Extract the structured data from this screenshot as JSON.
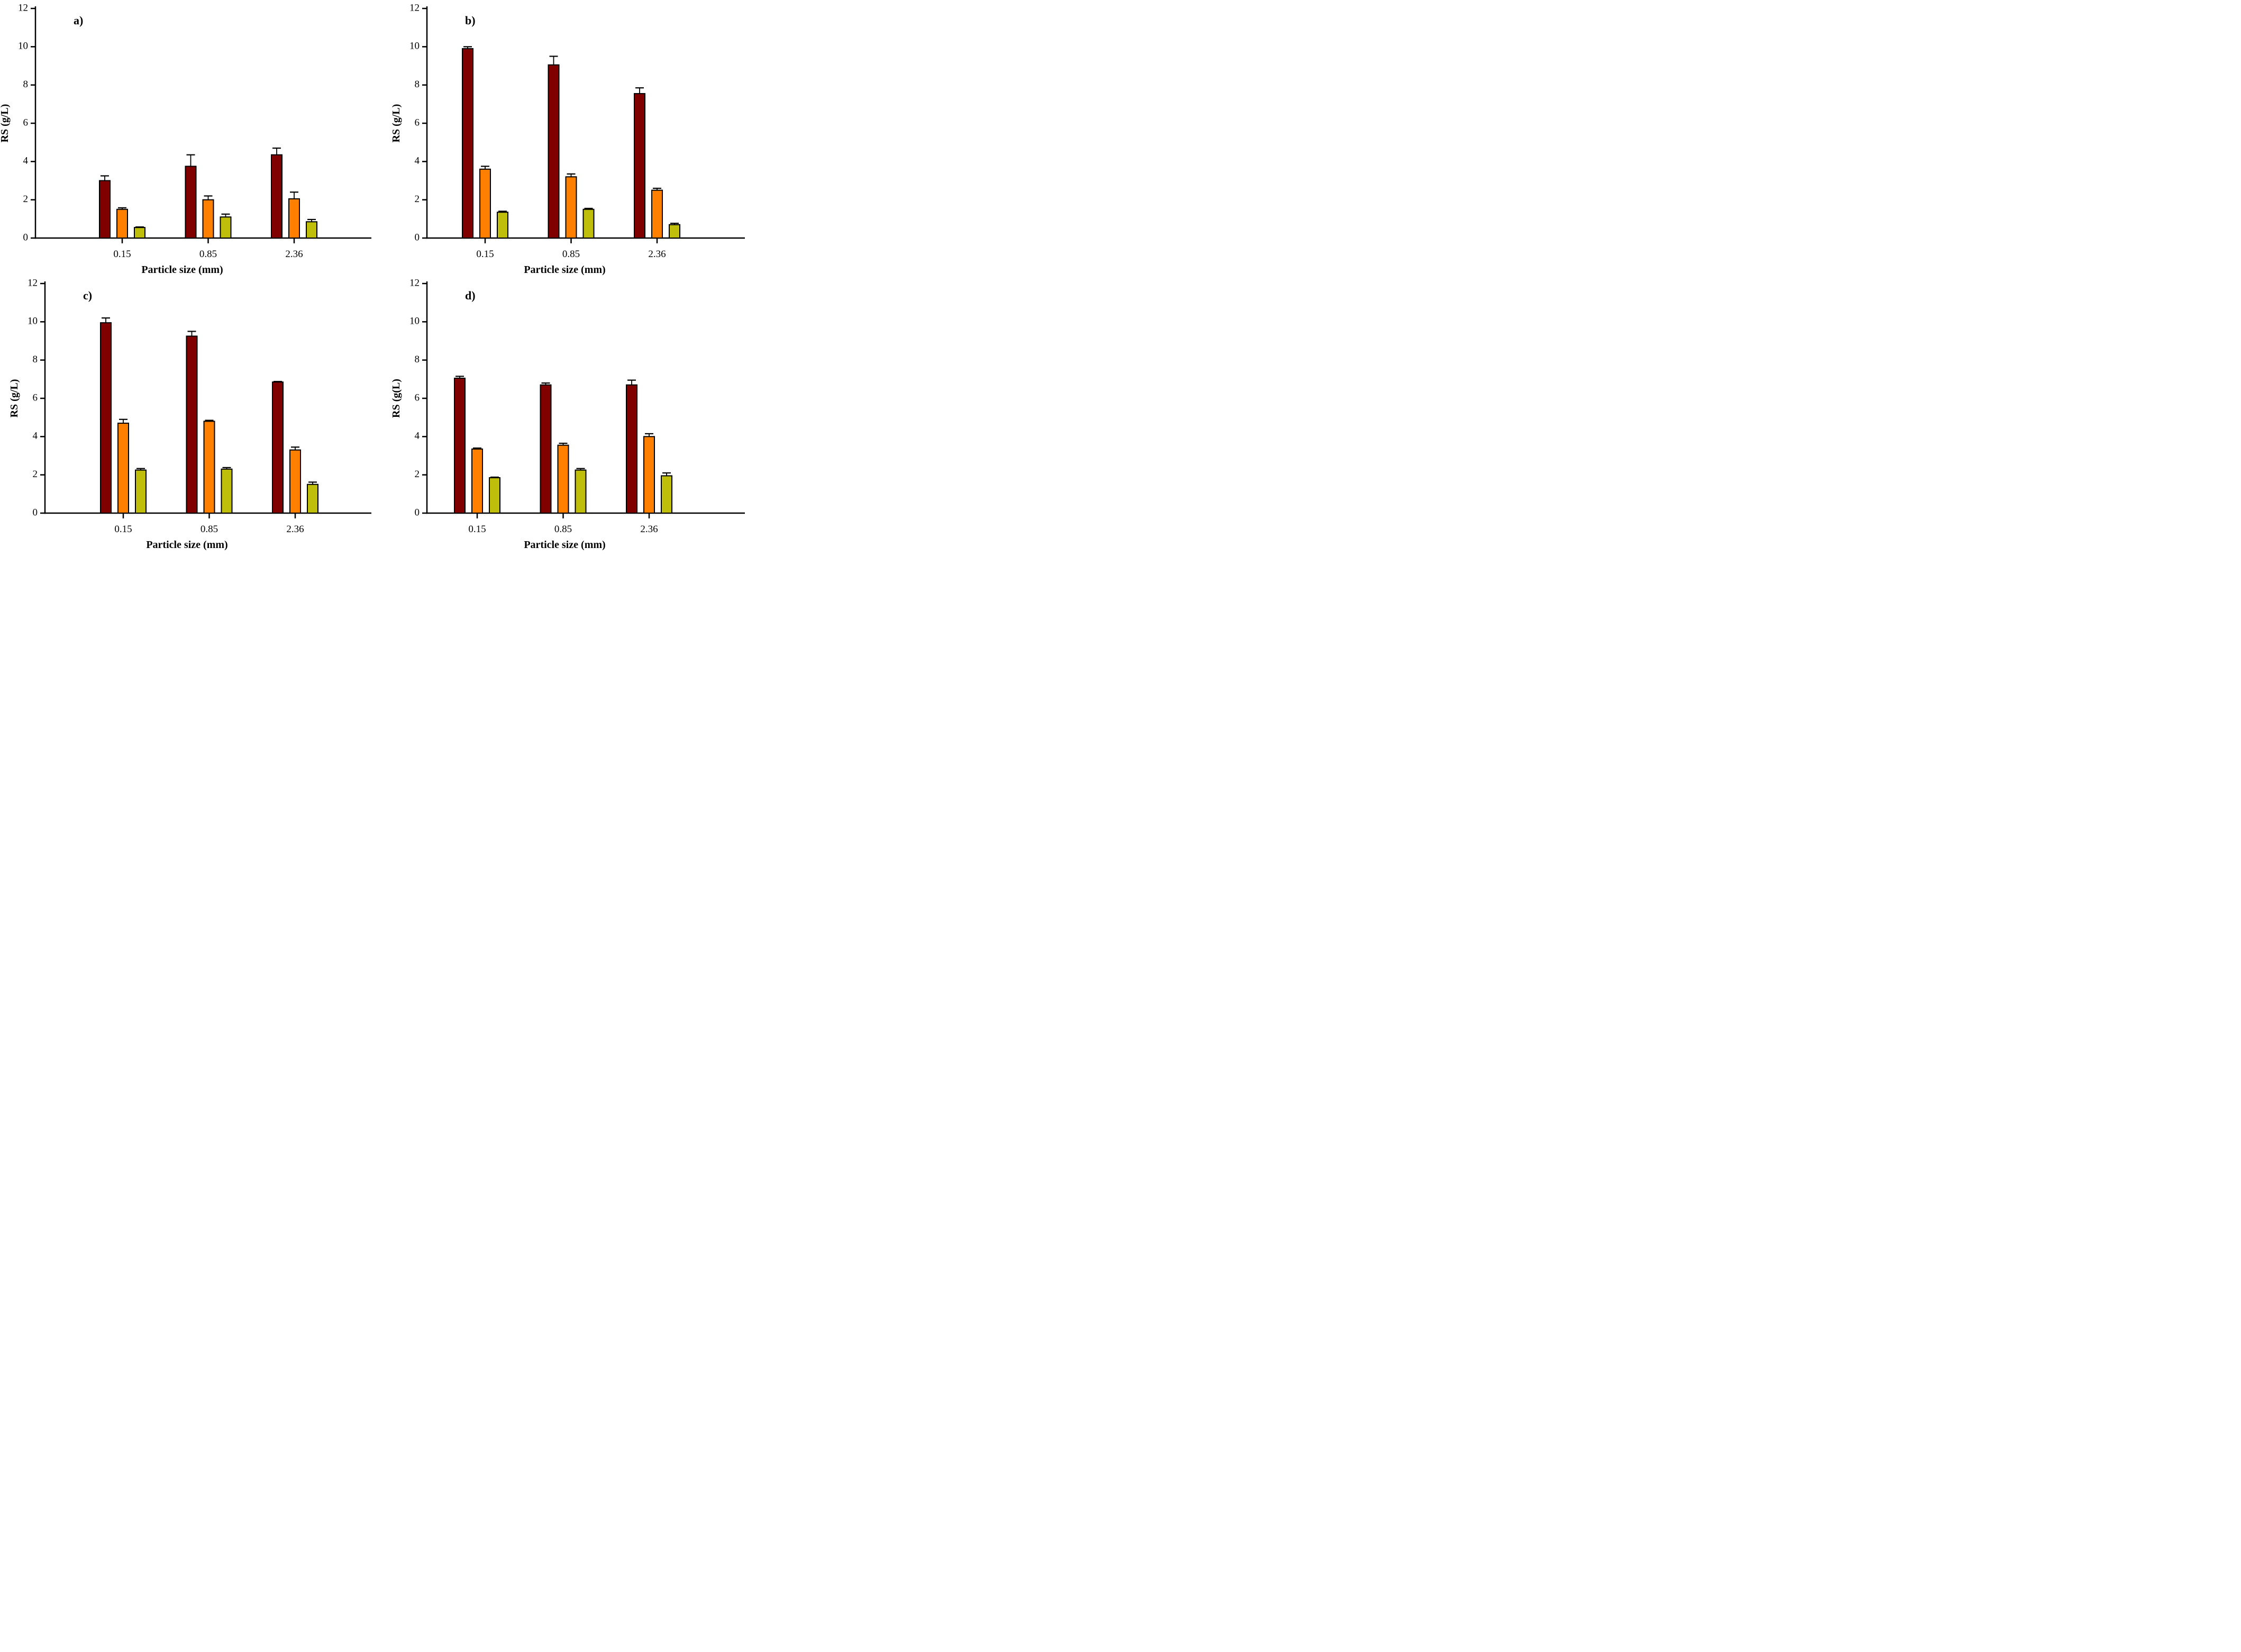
{
  "chart_data": [
    {
      "type": "bar",
      "panel_label": "a)",
      "xlabel": "Particle size (mm)",
      "ylabel": "RS (g/L)",
      "ylim": [
        0,
        12
      ],
      "yticks": [
        0,
        2,
        4,
        6,
        8,
        10,
        12
      ],
      "categories": [
        "0.15",
        "0.85",
        "2.36"
      ],
      "legend_shown": false,
      "error_bars": "upper",
      "series": [
        {
          "name": "dark-red-bars",
          "color": "#800000",
          "values": [
            3.0,
            3.75,
            4.35
          ],
          "errors": [
            0.25,
            0.6,
            0.35
          ]
        },
        {
          "name": "orange-bars",
          "color": "#FF8000",
          "values": [
            1.5,
            2.0,
            2.05
          ],
          "errors": [
            0.08,
            0.2,
            0.35
          ]
        },
        {
          "name": "olive-bars",
          "color": "#BFBE0B",
          "values": [
            0.55,
            1.1,
            0.85
          ],
          "errors": [
            0.03,
            0.15,
            0.12
          ]
        }
      ]
    },
    {
      "type": "bar",
      "panel_label": "b)",
      "xlabel": "Particle size (mm)",
      "ylabel": "RS (g/L)",
      "ylim": [
        0,
        12
      ],
      "yticks": [
        0,
        2,
        4,
        6,
        8,
        10,
        12
      ],
      "categories": [
        "0.15",
        "0.85",
        "2.36"
      ],
      "legend_shown": false,
      "error_bars": "upper",
      "series": [
        {
          "name": "dark-red-bars",
          "color": "#800000",
          "values": [
            9.9,
            9.05,
            7.55
          ],
          "errors": [
            0.1,
            0.45,
            0.3
          ]
        },
        {
          "name": "orange-bars",
          "color": "#FF8000",
          "values": [
            3.6,
            3.2,
            2.5
          ],
          "errors": [
            0.15,
            0.15,
            0.1
          ]
        },
        {
          "name": "olive-bars",
          "color": "#BFBE0B",
          "values": [
            1.35,
            1.5,
            0.7
          ],
          "errors": [
            0.05,
            0.05,
            0.07
          ]
        }
      ]
    },
    {
      "type": "bar",
      "panel_label": "c)",
      "xlabel": "Particle size (mm)",
      "ylabel": "RS (g/L)",
      "ylim": [
        0,
        12
      ],
      "yticks": [
        0,
        2,
        4,
        6,
        8,
        10,
        12
      ],
      "categories": [
        "0.15",
        "0.85",
        "2.36"
      ],
      "legend_shown": false,
      "error_bars": "upper",
      "series": [
        {
          "name": "dark-red-bars",
          "color": "#800000",
          "values": [
            9.95,
            9.25,
            6.85
          ],
          "errors": [
            0.25,
            0.25,
            0.03
          ]
        },
        {
          "name": "orange-bars",
          "color": "#FF8000",
          "values": [
            4.7,
            4.8,
            3.3
          ],
          "errors": [
            0.2,
            0.05,
            0.15
          ]
        },
        {
          "name": "olive-bars",
          "color": "#BFBE0B",
          "values": [
            2.25,
            2.3,
            1.5
          ],
          "errors": [
            0.08,
            0.08,
            0.12
          ]
        }
      ]
    },
    {
      "type": "bar",
      "panel_label": "d)",
      "xlabel": "Particle size (mm)",
      "ylabel": "RS (g(L)",
      "ylim": [
        0,
        12
      ],
      "yticks": [
        0,
        2,
        4,
        6,
        8,
        10,
        12
      ],
      "categories": [
        "0.15",
        "0.85",
        "2.36"
      ],
      "legend_shown": false,
      "error_bars": "upper",
      "series": [
        {
          "name": "dark-red-bars",
          "color": "#800000",
          "values": [
            7.05,
            6.7,
            6.7
          ],
          "errors": [
            0.1,
            0.1,
            0.25
          ]
        },
        {
          "name": "orange-bars",
          "color": "#FF8000",
          "values": [
            3.35,
            3.55,
            4.0
          ],
          "errors": [
            0.05,
            0.1,
            0.15
          ]
        },
        {
          "name": "olive-bars",
          "color": "#BFBE0B",
          "values": [
            1.85,
            2.25,
            1.95
          ],
          "errors": [
            0.03,
            0.08,
            0.15
          ]
        }
      ]
    }
  ]
}
